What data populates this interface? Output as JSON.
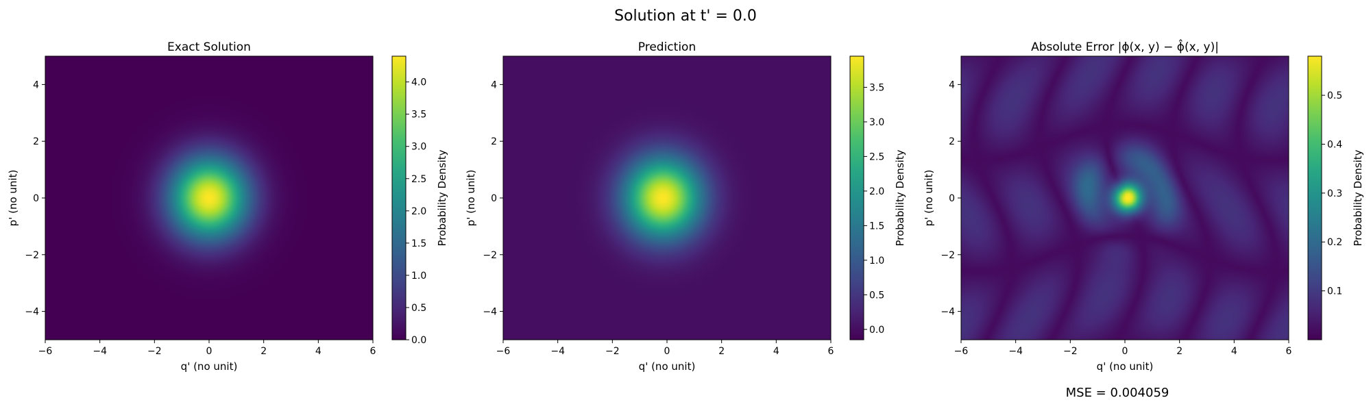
{
  "suptitle": "Solution at t' = 0.0",
  "footer": "MSE = 0.004059",
  "chart_data": [
    {
      "type": "heatmap",
      "title": "Exact Solution",
      "xlabel": "q' (no unit)",
      "ylabel": "p' (no unit)",
      "xlim": [
        -6,
        6
      ],
      "ylim": [
        -5,
        5
      ],
      "xticks": [
        -6,
        -4,
        -2,
        0,
        2,
        4,
        6
      ],
      "yticks": [
        -4,
        -2,
        0,
        2,
        4
      ],
      "colormap": "viridis",
      "colorbar": {
        "label": "Probability Density",
        "vmin": 0.0,
        "vmax": 4.4,
        "ticks": [
          0.0,
          0.5,
          1.0,
          1.5,
          2.0,
          2.5,
          3.0,
          3.5,
          4.0
        ],
        "tick_labels": [
          "0.0",
          "0.5",
          "1.0",
          "1.5",
          "2.0",
          "2.5",
          "3.0",
          "3.5",
          "4.0"
        ]
      },
      "field": {
        "kind": "gaussian",
        "peak": 4.4,
        "center": [
          0.0,
          0.0
        ],
        "sigma": 1.0
      }
    },
    {
      "type": "heatmap",
      "title": "Prediction",
      "xlabel": "q' (no unit)",
      "ylabel": "p' (no unit)",
      "xlim": [
        -6,
        6
      ],
      "ylim": [
        -5,
        5
      ],
      "xticks": [
        -6,
        -4,
        -2,
        0,
        2,
        4,
        6
      ],
      "yticks": [
        -4,
        -2,
        0,
        2,
        4
      ],
      "colormap": "viridis",
      "colorbar": {
        "label": "Probability Density",
        "vmin": -0.15,
        "vmax": 3.95,
        "ticks": [
          0.0,
          0.5,
          1.0,
          1.5,
          2.0,
          2.5,
          3.0,
          3.5
        ],
        "tick_labels": [
          "0.0",
          "0.5",
          "1.0",
          "1.5",
          "2.0",
          "2.5",
          "3.0",
          "3.5"
        ]
      },
      "field": {
        "kind": "gaussian",
        "peak": 3.95,
        "center": [
          -0.15,
          0.0
        ],
        "sigma": 1.0
      }
    },
    {
      "type": "heatmap",
      "title": "Absolute Error",
      "title_math": "|ϕ(x, y) − ϕ̂(x, y)|",
      "xlabel": "q' (no unit)",
      "ylabel": "p' (no unit)",
      "xlim": [
        -6,
        6
      ],
      "ylim": [
        -5,
        5
      ],
      "xticks": [
        -6,
        -4,
        -2,
        0,
        2,
        4,
        6
      ],
      "yticks": [
        -4,
        -2,
        0,
        2,
        4
      ],
      "colormap": "viridis",
      "colorbar": {
        "label": "Probability Density",
        "vmin": 0.0,
        "vmax": 0.58,
        "ticks": [
          0.1,
          0.2,
          0.3,
          0.4,
          0.5
        ],
        "tick_labels": [
          "0.1",
          "0.2",
          "0.3",
          "0.4",
          "0.5"
        ]
      },
      "field": {
        "kind": "error",
        "peak": 0.58,
        "center": [
          0.1,
          0.0
        ],
        "sigma": 0.35,
        "background": 0.05
      }
    }
  ]
}
